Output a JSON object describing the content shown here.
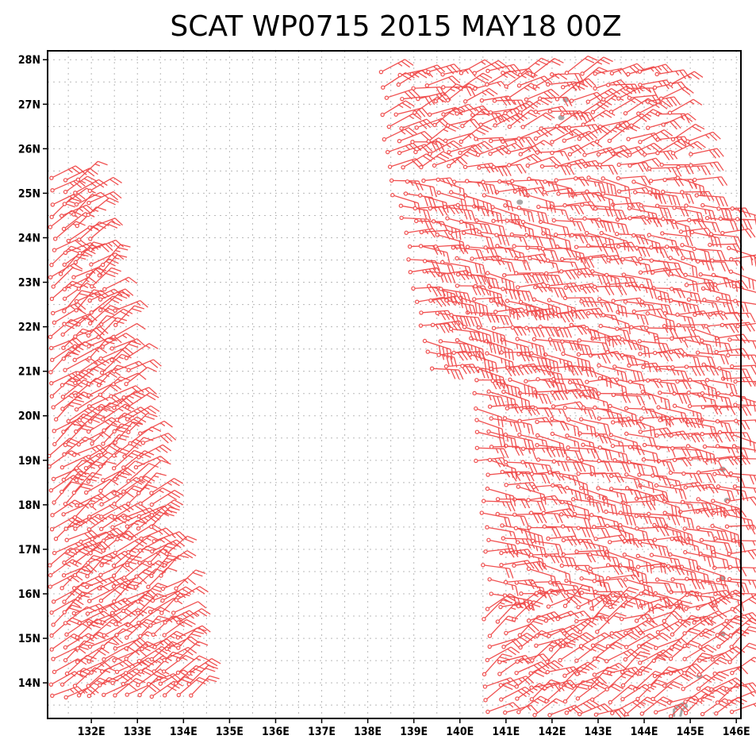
{
  "chart_data": {
    "type": "wind-barb",
    "title": "SCAT WP0715 2015 MAY18 00Z",
    "xlim": [
      131.05,
      146.1
    ],
    "ylim": [
      13.2,
      28.2
    ],
    "x_ticks": [
      132,
      133,
      134,
      135,
      136,
      137,
      138,
      139,
      140,
      141,
      142,
      143,
      144,
      145,
      146
    ],
    "x_tick_labels": [
      "132E",
      "133E",
      "134E",
      "135E",
      "136E",
      "137E",
      "138E",
      "139E",
      "140E",
      "141E",
      "142E",
      "143E",
      "144E",
      "145E",
      "146E"
    ],
    "y_ticks": [
      14,
      15,
      16,
      17,
      18,
      19,
      20,
      21,
      22,
      23,
      24,
      25,
      26,
      27,
      28
    ],
    "y_tick_labels": [
      "14N",
      "15N",
      "16N",
      "17N",
      "18N",
      "19N",
      "20N",
      "21N",
      "22N",
      "23N",
      "24N",
      "25N",
      "26N",
      "27N",
      "28N"
    ],
    "grid": true,
    "barb_color": "#f05050",
    "land_color": "#a8a8a8",
    "swath_west": {
      "lon_range": [
        131.05,
        134.3
      ],
      "note": "narrow swath along western edge, winds mostly northeasterly 10-30 kt"
    },
    "swath_east": {
      "lon_range": [
        138.2,
        146.1
      ],
      "note": "broad swath east, easterly 10-35 kt with strongest winds near 141-142E 21-23N"
    },
    "islands": [
      {
        "lon": 142.3,
        "lat": 27.1
      },
      {
        "lon": 142.2,
        "lat": 26.7
      },
      {
        "lon": 141.3,
        "lat": 24.8
      },
      {
        "lon": 145.7,
        "lat": 18.8
      },
      {
        "lon": 145.8,
        "lat": 18.1
      },
      {
        "lon": 145.7,
        "lat": 16.35
      },
      {
        "lon": 145.7,
        "lat": 15.1
      },
      {
        "lon": 145.2,
        "lat": 14.15
      },
      {
        "lon": 144.75,
        "lat": 13.45
      }
    ]
  }
}
